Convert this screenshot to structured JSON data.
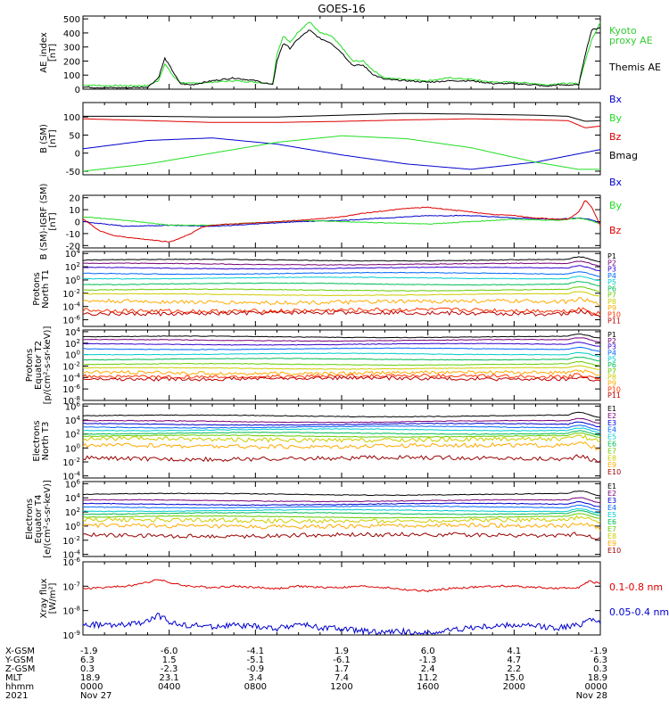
{
  "title": "GOES-16",
  "colors": {
    "black": "#000000",
    "green": "#22dd22",
    "blue": "#0000cc",
    "red": "#dd0000",
    "legend_green": "#33cc33"
  },
  "chart_data": [
    {
      "type": "line",
      "ylabel": "AE_index",
      "unit": "[nT]",
      "ylim": [
        0,
        520
      ],
      "yticks": [
        "0",
        "100",
        "200",
        "300",
        "400",
        "500"
      ],
      "ytick_values": [
        0,
        100,
        200,
        300,
        400,
        500
      ],
      "x_range_hours": [
        0,
        24
      ],
      "series": [
        {
          "name": "Kyoto",
          "name2": "proxy AE",
          "color": "#22dd22",
          "x": [
            0,
            1,
            2,
            3,
            3.5,
            3.8,
            4.2,
            4.5,
            5,
            6,
            7,
            8,
            8.8,
            9,
            9.3,
            9.6,
            10,
            10.5,
            11,
            11.5,
            12,
            12.5,
            13,
            13.5,
            14,
            15,
            16,
            17,
            18,
            19,
            20,
            21,
            21.5,
            22,
            22.5,
            23,
            23.3,
            23.6,
            24
          ],
          "y": [
            30,
            25,
            25,
            25,
            60,
            180,
            90,
            50,
            40,
            50,
            60,
            50,
            40,
            250,
            380,
            330,
            410,
            480,
            400,
            380,
            300,
            200,
            200,
            130,
            80,
            70,
            60,
            80,
            70,
            50,
            50,
            40,
            30,
            40,
            40,
            40,
            200,
            350,
            480
          ]
        },
        {
          "name": "Themis AE",
          "color": "#000000",
          "x": [
            0,
            1,
            2,
            3,
            3.5,
            3.8,
            4.2,
            4.5,
            5,
            6,
            7,
            8,
            8.8,
            9,
            9.3,
            9.6,
            10,
            10.5,
            11,
            11.5,
            12,
            12.5,
            13,
            13.5,
            14,
            15,
            16,
            17,
            18,
            19,
            20,
            21,
            21.5,
            22,
            22.5,
            23,
            23.3,
            23.6,
            24
          ],
          "y": [
            15,
            10,
            10,
            15,
            80,
            220,
            120,
            40,
            30,
            60,
            80,
            60,
            30,
            200,
            330,
            290,
            360,
            420,
            360,
            330,
            260,
            170,
            170,
            100,
            70,
            60,
            50,
            60,
            60,
            40,
            40,
            30,
            20,
            30,
            30,
            30,
            250,
            420,
            440
          ]
        }
      ]
    },
    {
      "type": "line",
      "ylabel": "B (SM)",
      "unit": "[nT]",
      "ylim": [
        -60,
        140
      ],
      "yticks": [
        "-50",
        "0",
        "50",
        "100"
      ],
      "ytick_values": [
        -50,
        0,
        50,
        100
      ],
      "x_range_hours": [
        0,
        24
      ],
      "series": [
        {
          "name": "Bx",
          "color": "#0000cc",
          "x": [
            0,
            3,
            6,
            9,
            12,
            15,
            18,
            21,
            24
          ],
          "y": [
            12,
            35,
            42,
            25,
            -5,
            -30,
            -45,
            -25,
            10
          ]
        },
        {
          "name": "By",
          "color": "#22dd22",
          "x": [
            0,
            3,
            6,
            9,
            12,
            15,
            18,
            21,
            23,
            24
          ],
          "y": [
            -50,
            -30,
            0,
            30,
            48,
            40,
            15,
            -25,
            -45,
            -45
          ]
        },
        {
          "name": "Bz",
          "color": "#dd0000",
          "x": [
            0,
            3,
            6,
            9,
            12,
            15,
            18,
            21,
            22.5,
            23.3,
            24
          ],
          "y": [
            95,
            90,
            85,
            85,
            88,
            92,
            95,
            92,
            90,
            70,
            75
          ]
        },
        {
          "name": "Bmag",
          "color": "#000000",
          "x": [
            0,
            3,
            6,
            9,
            12,
            15,
            18,
            21,
            22.5,
            23.3,
            24
          ],
          "y": [
            102,
            102,
            100,
            100,
            105,
            110,
            108,
            105,
            102,
            88,
            90
          ]
        }
      ]
    },
    {
      "type": "line",
      "ylabel": "B (SM)-IGRF (SM)",
      "unit": "[nT]",
      "ylim": [
        -22,
        22
      ],
      "yticks": [
        "-20",
        "-10",
        "0",
        "10",
        "20"
      ],
      "ytick_values": [
        -20,
        -10,
        0,
        10,
        20
      ],
      "x_range_hours": [
        0,
        24
      ],
      "series": [
        {
          "name": "Bx",
          "color": "#0000cc",
          "x": [
            0,
            2,
            4,
            6,
            8,
            10,
            12,
            14,
            16,
            18,
            20,
            22,
            23,
            23.5,
            24
          ],
          "y": [
            0,
            -4,
            -3,
            -4,
            -2,
            0,
            1,
            3,
            5,
            5,
            3,
            2,
            3,
            2,
            -1
          ]
        },
        {
          "name": "By",
          "color": "#22dd22",
          "x": [
            0,
            2,
            4,
            6,
            8,
            10,
            12,
            14,
            16,
            18,
            20,
            22,
            23,
            23.5,
            24
          ],
          "y": [
            4,
            1,
            -3,
            -3,
            -1,
            1,
            0,
            -1,
            -2,
            0,
            2,
            1,
            3,
            1,
            -2
          ]
        },
        {
          "name": "Bz",
          "color": "#dd0000",
          "x": [
            0,
            0.8,
            1.5,
            2.5,
            3.5,
            4,
            4.5,
            5,
            5.5,
            6,
            8,
            10,
            12,
            13,
            14,
            15,
            16,
            17,
            18,
            19,
            20,
            21,
            22,
            22.5,
            23,
            23.3,
            23.6,
            24
          ],
          "y": [
            2,
            -8,
            -12,
            -14,
            -16,
            -17,
            -14,
            -10,
            -5,
            -3,
            -1,
            1,
            4,
            7,
            9,
            11,
            12,
            10,
            8,
            6,
            5,
            3,
            2,
            2,
            8,
            18,
            12,
            -3
          ]
        }
      ]
    },
    {
      "type": "line",
      "ylabel": "Protons",
      "ylabel2": "North T1",
      "unit": "",
      "log": true,
      "ylim_exp": [
        -7,
        4.3
      ],
      "yticks": [
        "10^4",
        "10^2",
        "10^0",
        "10^-2",
        "10^-4",
        "10^-6"
      ],
      "ytick_exps": [
        4,
        2,
        0,
        -2,
        -4,
        -6
      ],
      "x_range_hours": [
        0,
        24
      ],
      "channels": [
        {
          "name": "P1",
          "color": "#000000",
          "level": 3.0
        },
        {
          "name": "P2",
          "color": "#770077",
          "level": 2.4
        },
        {
          "name": "P3",
          "color": "#3300cc",
          "level": 1.8
        },
        {
          "name": "P4",
          "color": "#0066ff",
          "level": 1.0
        },
        {
          "name": "P5",
          "color": "#00cccc",
          "level": 0.3
        },
        {
          "name": "P6",
          "color": "#00bb55",
          "level": -0.6
        },
        {
          "name": "P7",
          "color": "#66cc00",
          "level": -1.5
        },
        {
          "name": "P8",
          "color": "#cccc00",
          "level": -2.2
        },
        {
          "name": "P9",
          "color": "#ffaa00",
          "level": -3.3
        },
        {
          "name": "P10",
          "color": "#ff3300",
          "level": -4.6
        },
        {
          "name": "P11",
          "color": "#bb0000",
          "level": -5.0
        }
      ]
    },
    {
      "type": "line",
      "ylabel": "Protons",
      "ylabel2": "Equator T2",
      "unit": "[p/(cm²-s-sr-keV)]",
      "log": true,
      "ylim_exp": [
        -8,
        4.3
      ],
      "yticks": [
        "10^4",
        "10^2",
        "10^0",
        "10^-2",
        "10^-4",
        "10^-6",
        "10^-8"
      ],
      "ytick_exps": [
        4,
        2,
        0,
        -2,
        -4,
        -6,
        -8
      ],
      "x_range_hours": [
        0,
        24
      ],
      "channels": [
        {
          "name": "P1",
          "color": "#000000",
          "level": 3.1
        },
        {
          "name": "P2",
          "color": "#770077",
          "level": 2.5
        },
        {
          "name": "P3",
          "color": "#3300cc",
          "level": 1.8
        },
        {
          "name": "P4",
          "color": "#0066ff",
          "level": 1.0
        },
        {
          "name": "P5",
          "color": "#00cccc",
          "level": 0.1
        },
        {
          "name": "P6",
          "color": "#00bb55",
          "level": -0.8
        },
        {
          "name": "P7",
          "color": "#66cc00",
          "level": -1.7
        },
        {
          "name": "P8",
          "color": "#cccc00",
          "level": -2.4
        },
        {
          "name": "P9",
          "color": "#ffaa00",
          "level": -3.2
        },
        {
          "name": "P10",
          "color": "#ff3300",
          "level": -3.8
        },
        {
          "name": "P11",
          "color": "#bb0000",
          "level": -4.2
        }
      ]
    },
    {
      "type": "line",
      "ylabel": "Electrons",
      "ylabel2": "North T3",
      "unit": "",
      "log": true,
      "ylim_exp": [
        -4.3,
        6.3
      ],
      "yticks": [
        "10^6",
        "10^4",
        "10^2",
        "10^0",
        "10^-2",
        "10^-4"
      ],
      "ytick_exps": [
        6,
        4,
        2,
        0,
        -2,
        -4
      ],
      "x_range_hours": [
        0,
        24
      ],
      "channels": [
        {
          "name": "E1",
          "color": "#000000",
          "level": 4.6
        },
        {
          "name": "E2",
          "color": "#770077",
          "level": 3.8
        },
        {
          "name": "E3",
          "color": "#0000cc",
          "level": 3.4
        },
        {
          "name": "E4",
          "color": "#0066ff",
          "level": 3.0
        },
        {
          "name": "E5",
          "color": "#00cccc",
          "level": 2.6
        },
        {
          "name": "E6",
          "color": "#00bb55",
          "level": 2.1
        },
        {
          "name": "E7",
          "color": "#66cc00",
          "level": 1.7
        },
        {
          "name": "E8",
          "color": "#cccc00",
          "level": 1.2
        },
        {
          "name": "E9",
          "color": "#ffaa00",
          "level": 0.3
        },
        {
          "name": "E10",
          "color": "#990000",
          "level": -1.5
        }
      ]
    },
    {
      "type": "line",
      "ylabel": "Electrons",
      "ylabel2": "Equator T4",
      "unit": "[e/(cm²-s-sr-keV)]",
      "log": true,
      "ylim_exp": [
        -4.3,
        6.3
      ],
      "yticks": [
        "10^6",
        "10^4",
        "10^2",
        "10^0",
        "10^-2",
        "10^-4"
      ],
      "ytick_exps": [
        6,
        4,
        2,
        0,
        -2,
        -4
      ],
      "x_range_hours": [
        0,
        24
      ],
      "channels": [
        {
          "name": "E1",
          "color": "#000000",
          "level": 4.5
        },
        {
          "name": "E2",
          "color": "#770077",
          "level": 3.6
        },
        {
          "name": "E3",
          "color": "#0000cc",
          "level": 3.1
        },
        {
          "name": "E4",
          "color": "#0066ff",
          "level": 2.7
        },
        {
          "name": "E5",
          "color": "#00cccc",
          "level": 2.2
        },
        {
          "name": "E6",
          "color": "#00bb55",
          "level": 1.8
        },
        {
          "name": "E7",
          "color": "#66cc00",
          "level": 1.3
        },
        {
          "name": "E8",
          "color": "#cccc00",
          "level": 0.8
        },
        {
          "name": "E9",
          "color": "#ffaa00",
          "level": 0.0
        },
        {
          "name": "E10",
          "color": "#990000",
          "level": -1.3
        }
      ]
    },
    {
      "type": "line",
      "ylabel": "Xray flux",
      "unit": "[W/m²]",
      "log": true,
      "ylim_exp": [
        -9,
        -6
      ],
      "yticks": [
        "10^-6",
        "10^-7",
        "10^-8",
        "10^-9"
      ],
      "ytick_exps": [
        -6,
        -7,
        -8,
        -9
      ],
      "x_range_hours": [
        0,
        24
      ],
      "series": [
        {
          "name": "0.1-0.8 nm",
          "color": "#dd0000",
          "x": [
            0,
            1,
            2,
            3,
            3.5,
            4,
            4.5,
            5,
            6,
            7,
            8,
            9,
            10,
            11,
            12,
            13,
            14,
            15,
            16,
            17,
            18,
            19,
            20,
            21,
            22,
            23,
            23.5,
            24
          ],
          "y_exp": [
            -7.1,
            -7.05,
            -7.0,
            -6.85,
            -6.7,
            -6.85,
            -6.95,
            -7.0,
            -7.05,
            -7.0,
            -7.05,
            -7.1,
            -7.0,
            -7.05,
            -7.05,
            -7.0,
            -7.05,
            -7.15,
            -7.2,
            -7.1,
            -7.05,
            -7.0,
            -7.0,
            -7.05,
            -7.1,
            -7.05,
            -6.8,
            -6.9
          ]
        },
        {
          "name": "0.05-0.4 nm",
          "color": "#0000cc",
          "x": [
            0,
            1,
            2,
            3,
            3.5,
            4,
            4.5,
            5,
            6,
            7,
            8,
            9,
            10,
            11,
            12,
            13,
            14,
            15,
            16,
            17,
            18,
            19,
            20,
            21,
            22,
            23,
            23.5,
            24
          ],
          "y_exp": [
            -8.55,
            -8.6,
            -8.6,
            -8.45,
            -8.2,
            -8.45,
            -8.6,
            -8.6,
            -8.65,
            -8.6,
            -8.65,
            -8.75,
            -8.55,
            -8.7,
            -8.75,
            -8.85,
            -8.9,
            -8.85,
            -8.95,
            -8.8,
            -8.7,
            -8.65,
            -8.6,
            -8.65,
            -8.7,
            -8.6,
            -8.3,
            -8.45
          ]
        }
      ]
    }
  ],
  "x_axis": {
    "row_labels": [
      "X-GSM",
      "Y-GSM",
      "Z-GSM",
      "MLT",
      "hhmm",
      "2021"
    ],
    "columns": [
      {
        "hour": 0,
        "values": [
          "-1.9",
          "6.3",
          "0.3",
          "18.9",
          "0000",
          "Nov 27"
        ]
      },
      {
        "hour": 4,
        "values": [
          "-6.0",
          "1.5",
          "-2.3",
          "23.1",
          "0400",
          ""
        ]
      },
      {
        "hour": 8,
        "values": [
          "-4.1",
          "-5.1",
          "-0.9",
          "3.4",
          "0800",
          ""
        ]
      },
      {
        "hour": 12,
        "values": [
          "1.9",
          "-6.1",
          "1.7",
          "7.4",
          "1200",
          ""
        ]
      },
      {
        "hour": 16,
        "values": [
          "6.0",
          "-1.3",
          "2.4",
          "11.2",
          "1600",
          ""
        ]
      },
      {
        "hour": 20,
        "values": [
          "4.1",
          "4.7",
          "2.2",
          "15.0",
          "2000",
          ""
        ]
      },
      {
        "hour": 24,
        "values": [
          "-1.9",
          "6.3",
          "0.3",
          "18.9",
          "0000",
          "Nov 28"
        ]
      }
    ]
  }
}
